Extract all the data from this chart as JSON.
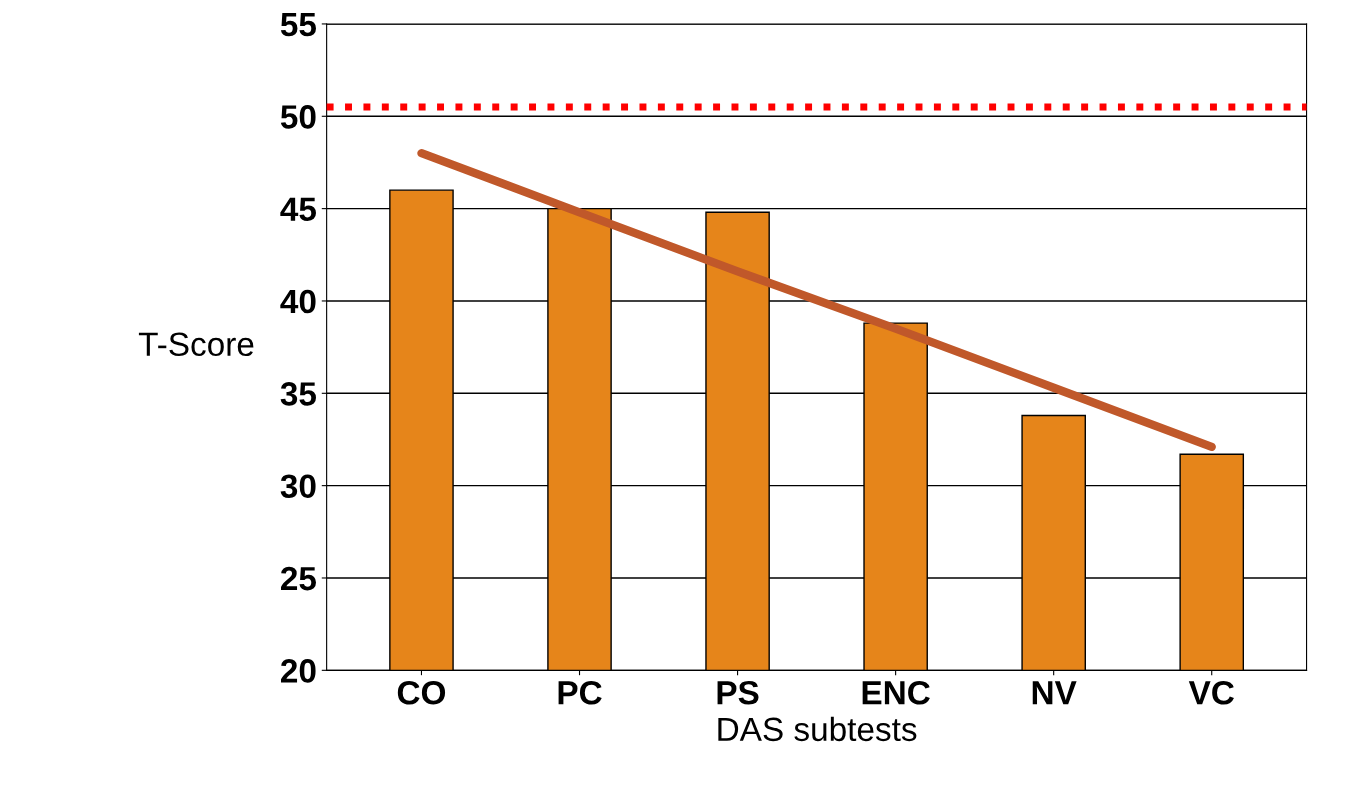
{
  "chart_data": {
    "type": "bar",
    "xlabel": "DAS subtests",
    "ylabel": "T-Score",
    "categories": [
      "CO",
      "PC",
      "PS",
      "ENC",
      "NV",
      "VC"
    ],
    "series": [
      {
        "color": "#e6851a",
        "values": [
          46,
          45,
          44.8,
          38.8,
          33.8,
          31.7
        ]
      },
      {
        "type": "line",
        "color": "#c0582a",
        "values": [
          48.0,
          44.8,
          41.6,
          38.5,
          35.3,
          32.1
        ]
      }
    ],
    "ylim": [
      20,
      55
    ],
    "yticks": [
      20,
      25,
      30,
      35,
      40,
      45,
      50,
      55
    ],
    "grid": "y",
    "ref_lines": [
      {
        "axis": "y",
        "value": 50.5,
        "color": "#ff0000",
        "line_style": "dotted"
      }
    ]
  }
}
